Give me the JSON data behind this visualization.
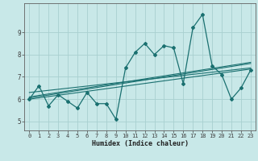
{
  "title": "",
  "xlabel": "Humidex (Indice chaleur)",
  "bg_color": "#c8e8e8",
  "grid_color": "#a8d0d0",
  "line_color": "#1a7070",
  "xlim": [
    -0.5,
    23.5
  ],
  "ylim": [
    4.6,
    10.3
  ],
  "yticks": [
    5,
    6,
    7,
    8,
    9
  ],
  "xticks": [
    0,
    1,
    2,
    3,
    4,
    5,
    6,
    7,
    8,
    9,
    10,
    11,
    12,
    13,
    14,
    15,
    16,
    17,
    18,
    19,
    20,
    21,
    22,
    23
  ],
  "main_series_x": [
    0,
    1,
    2,
    3,
    4,
    5,
    6,
    7,
    8,
    9,
    10,
    11,
    12,
    13,
    14,
    15,
    16,
    17,
    18,
    19,
    20,
    21,
    22,
    23
  ],
  "main_series_y": [
    6.0,
    6.6,
    5.7,
    6.2,
    5.9,
    5.6,
    6.3,
    5.8,
    5.8,
    5.1,
    7.4,
    8.1,
    8.5,
    8.0,
    8.4,
    8.3,
    6.7,
    9.2,
    9.8,
    7.5,
    7.1,
    6.0,
    6.5,
    7.3
  ],
  "reg_lines": [
    {
      "x": [
        0,
        23
      ],
      "y": [
        6.0,
        7.35
      ]
    },
    {
      "x": [
        0,
        23
      ],
      "y": [
        6.05,
        7.6
      ]
    },
    {
      "x": [
        0,
        23
      ],
      "y": [
        6.1,
        7.65
      ]
    },
    {
      "x": [
        0,
        23
      ],
      "y": [
        6.3,
        7.4
      ]
    }
  ],
  "xlabel_fontsize": 6.0,
  "tick_fontsize": 5.0
}
